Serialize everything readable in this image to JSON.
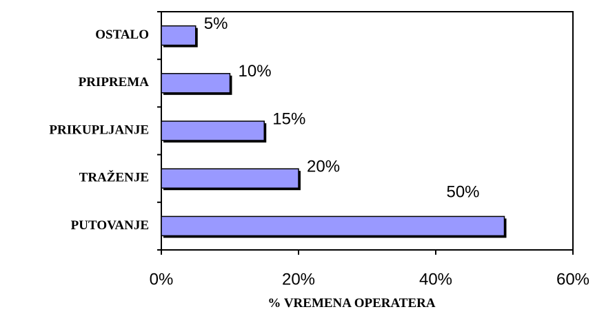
{
  "chart_data": {
    "type": "bar",
    "orientation": "horizontal",
    "categories": [
      "OSTALO",
      "PRIPREMA",
      "PRIKUPLJANJE",
      "TRAŽENJE",
      "PUTOVANJE"
    ],
    "values": [
      5,
      10,
      15,
      20,
      50
    ],
    "value_labels": [
      "5%",
      "10%",
      "15%",
      "20%",
      "50%"
    ],
    "color": "#9999ff",
    "xlim": [
      0,
      60
    ],
    "xticks": [
      {
        "value": 0,
        "label": "0%"
      },
      {
        "value": 20,
        "label": "20%"
      },
      {
        "value": 40,
        "label": "40%"
      },
      {
        "value": 60,
        "label": "60%"
      }
    ],
    "x_label": "% VREMENA OPERATERA"
  }
}
